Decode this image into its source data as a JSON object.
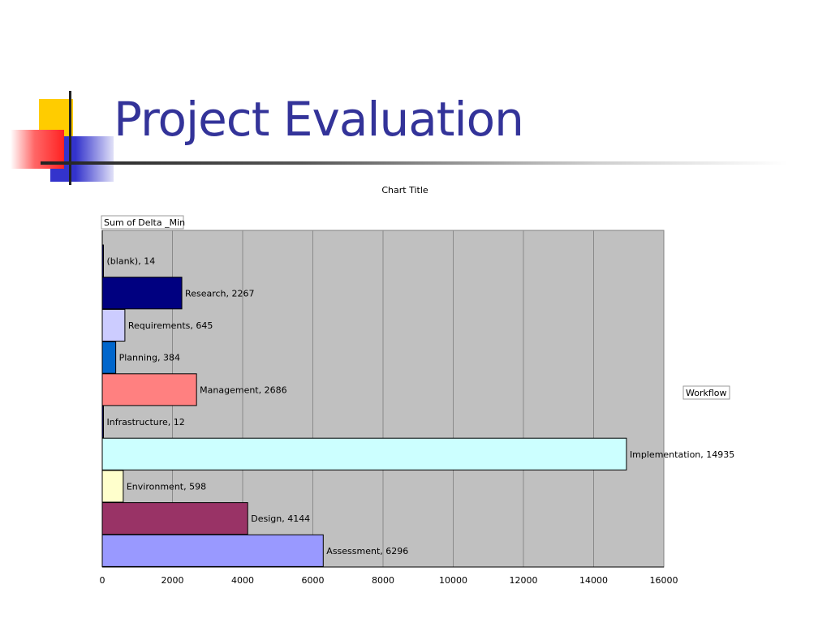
{
  "slide": {
    "title": "Project Evaluation",
    "colors": {
      "title": "#333399",
      "deco_yellow": "#ffcc00",
      "deco_blue": "#3333cc",
      "deco_red": "#ff3333"
    }
  },
  "chart_data": {
    "type": "bar",
    "orientation": "horizontal",
    "title": "Chart Title",
    "field_button": "Sum of Delta _Min",
    "legend": {
      "entries": [
        "Workflow"
      ],
      "placement": "right"
    },
    "categories": [
      "(blank)",
      "Research",
      "Requirements",
      "Planning",
      "Management",
      "Infrastructure",
      "Implementation",
      "Environment",
      "Design",
      "Assessment"
    ],
    "values": [
      14,
      2267,
      645,
      384,
      2686,
      12,
      14935,
      598,
      4144,
      6296
    ],
    "data_labels": [
      "(blank), 14",
      "Research, 2267",
      "Requirements, 645",
      "Planning, 384",
      "Management, 2686",
      "Infrastructure, 12",
      "Implementation, 14935",
      "Environment, 598",
      "Design, 4144",
      "Assessment, 6296"
    ],
    "colors": [
      "#000080",
      "#000080",
      "#ccccff",
      "#0066cc",
      "#ff8080",
      "#000080",
      "#ccffff",
      "#ffffcc",
      "#993366",
      "#9999ff"
    ],
    "xlim": [
      0,
      16000
    ],
    "xticks": [
      0,
      2000,
      4000,
      6000,
      8000,
      10000,
      12000,
      14000,
      16000
    ],
    "xtick_labels": [
      "0",
      "2000",
      "4000",
      "6000",
      "8000",
      "10000",
      "12000",
      "14000",
      "16000"
    ],
    "grid": true,
    "plot_background": "#c0c0c0"
  }
}
